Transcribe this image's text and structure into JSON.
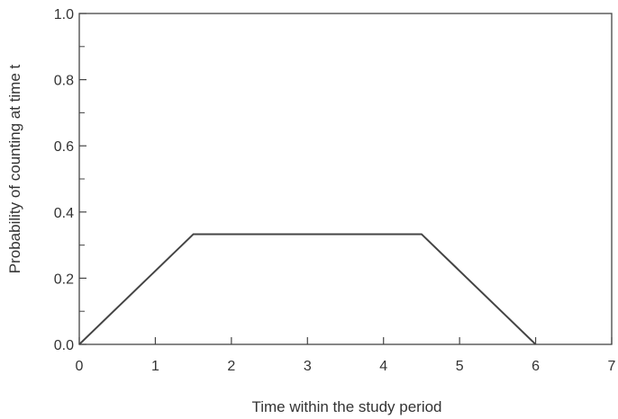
{
  "chart_data": {
    "type": "line",
    "title": "",
    "xlabel": "Time within the study period",
    "ylabel": "Probability of counting at time t",
    "xlim": [
      0,
      7
    ],
    "ylim": [
      0,
      1.0
    ],
    "x_ticks": [
      0,
      1,
      2,
      3,
      4,
      5,
      6,
      7
    ],
    "x_tick_labels": [
      "0",
      "1",
      "2",
      "3",
      "4",
      "5",
      "6",
      "7"
    ],
    "y_ticks": [
      0,
      0.2,
      0.4,
      0.6,
      0.8,
      1.0
    ],
    "y_tick_labels": [
      "0.0",
      "0.2",
      "0.4",
      "0.6",
      "0.8",
      "1.0"
    ],
    "y_minor_ticks": [
      0.1,
      0.3,
      0.5,
      0.7,
      0.9
    ],
    "grid": false,
    "series": [
      {
        "x": [
          0,
          1.5,
          4.5,
          6
        ],
        "y": [
          0,
          0.333,
          0.333,
          0
        ]
      }
    ],
    "colors": {
      "line": "#444444",
      "axis": "#444444",
      "text": "#333333"
    }
  }
}
